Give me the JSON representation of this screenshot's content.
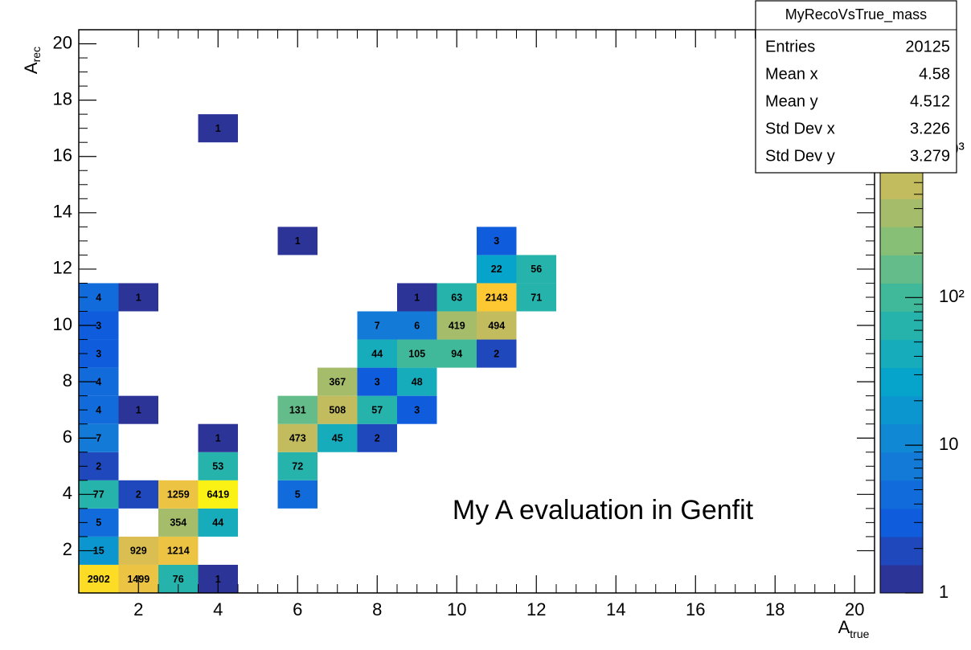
{
  "chart_data": {
    "type": "heatmap",
    "x_label": "A",
    "x_label_sub": "true",
    "y_label": "A",
    "y_label_sub": "rec",
    "xlim": [
      0.5,
      20.5
    ],
    "xticks": [
      2,
      4,
      6,
      8,
      10,
      12,
      14,
      16,
      18,
      20
    ],
    "ylim": [
      0.5,
      20.5
    ],
    "yticks": [
      2,
      4,
      6,
      8,
      10,
      12,
      14,
      16,
      18,
      20
    ],
    "zlim": [
      1,
      6500
    ],
    "zscale": "log",
    "zticks": [
      1,
      10,
      {
        "value": 100,
        "label": "10²"
      },
      {
        "value": 1000,
        "label": "10³"
      }
    ],
    "colormap": [
      "#352a87",
      "#0f5cdd",
      "#1481d6",
      "#06a4ca",
      "#2eb7a4",
      "#87bf77",
      "#d1bb59",
      "#fec832",
      "#f9fb0e"
    ],
    "color_levels": 20,
    "cells": [
      {
        "x": 1,
        "y": 1,
        "value": 2902
      },
      {
        "x": 2,
        "y": 1,
        "value": 1499
      },
      {
        "x": 3,
        "y": 1,
        "value": 76
      },
      {
        "x": 4,
        "y": 1,
        "value": 1
      },
      {
        "x": 1,
        "y": 2,
        "value": 15
      },
      {
        "x": 2,
        "y": 2,
        "value": 929
      },
      {
        "x": 3,
        "y": 2,
        "value": 1214
      },
      {
        "x": 1,
        "y": 3,
        "value": 5
      },
      {
        "x": 3,
        "y": 3,
        "value": 354
      },
      {
        "x": 4,
        "y": 3,
        "value": 44
      },
      {
        "x": 1,
        "y": 4,
        "value": 77
      },
      {
        "x": 2,
        "y": 4,
        "value": 2
      },
      {
        "x": 3,
        "y": 4,
        "value": 1259
      },
      {
        "x": 4,
        "y": 4,
        "value": 6419
      },
      {
        "x": 6,
        "y": 4,
        "value": 5
      },
      {
        "x": 1,
        "y": 5,
        "value": 2
      },
      {
        "x": 4,
        "y": 5,
        "value": 53
      },
      {
        "x": 6,
        "y": 5,
        "value": 72
      },
      {
        "x": 1,
        "y": 6,
        "value": 7
      },
      {
        "x": 4,
        "y": 6,
        "value": 1
      },
      {
        "x": 6,
        "y": 6,
        "value": 473
      },
      {
        "x": 7,
        "y": 6,
        "value": 45
      },
      {
        "x": 8,
        "y": 6,
        "value": 2
      },
      {
        "x": 1,
        "y": 7,
        "value": 4
      },
      {
        "x": 2,
        "y": 7,
        "value": 1
      },
      {
        "x": 6,
        "y": 7,
        "value": 131
      },
      {
        "x": 7,
        "y": 7,
        "value": 508
      },
      {
        "x": 8,
        "y": 7,
        "value": 57
      },
      {
        "x": 9,
        "y": 7,
        "value": 3
      },
      {
        "x": 1,
        "y": 8,
        "value": 4
      },
      {
        "x": 7,
        "y": 8,
        "value": 367
      },
      {
        "x": 8,
        "y": 8,
        "value": 3
      },
      {
        "x": 9,
        "y": 8,
        "value": 48
      },
      {
        "x": 1,
        "y": 9,
        "value": 3
      },
      {
        "x": 8,
        "y": 9,
        "value": 44
      },
      {
        "x": 9,
        "y": 9,
        "value": 105
      },
      {
        "x": 10,
        "y": 9,
        "value": 94
      },
      {
        "x": 11,
        "y": 9,
        "value": 2
      },
      {
        "x": 1,
        "y": 10,
        "value": 3
      },
      {
        "x": 8,
        "y": 10,
        "value": 7
      },
      {
        "x": 9,
        "y": 10,
        "value": 6
      },
      {
        "x": 10,
        "y": 10,
        "value": 419
      },
      {
        "x": 11,
        "y": 10,
        "value": 494
      },
      {
        "x": 1,
        "y": 11,
        "value": 4
      },
      {
        "x": 2,
        "y": 11,
        "value": 1
      },
      {
        "x": 9,
        "y": 11,
        "value": 1
      },
      {
        "x": 10,
        "y": 11,
        "value": 63
      },
      {
        "x": 11,
        "y": 11,
        "value": 2143
      },
      {
        "x": 12,
        "y": 11,
        "value": 71
      },
      {
        "x": 11,
        "y": 12,
        "value": 22
      },
      {
        "x": 12,
        "y": 12,
        "value": 56
      },
      {
        "x": 6,
        "y": 13,
        "value": 1
      },
      {
        "x": 11,
        "y": 13,
        "value": 3
      },
      {
        "x": 4,
        "y": 17,
        "value": 1
      }
    ],
    "annotation": "My A evaluation in Genfit",
    "annotation_color": "#e8161b",
    "stats": {
      "title": "MyRecoVsTrue_mass",
      "rows": [
        {
          "label": "Entries",
          "value": 20125
        },
        {
          "label": "Mean x",
          "value": 4.58
        },
        {
          "label": "Mean y",
          "value": 4.512
        },
        {
          "label": "Std Dev x",
          "value": 3.226
        },
        {
          "label": "Std Dev y",
          "value": 3.279
        }
      ]
    }
  }
}
